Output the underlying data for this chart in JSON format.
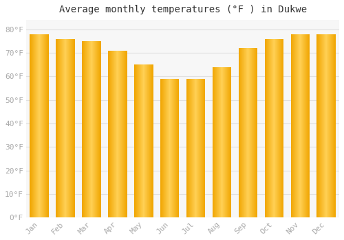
{
  "title": "Average monthly temperatures (°F ) in Dukwe",
  "months": [
    "Jan",
    "Feb",
    "Mar",
    "Apr",
    "May",
    "Jun",
    "Jul",
    "Aug",
    "Sep",
    "Oct",
    "Nov",
    "Dec"
  ],
  "values": [
    78,
    76,
    75,
    71,
    65,
    59,
    59,
    64,
    72,
    76,
    78,
    78
  ],
  "bar_edge_color": "#F0A500",
  "bar_center_color": "#FFD055",
  "background_color": "#ffffff",
  "plot_bg_color": "#f7f7f7",
  "grid_color": "#e0e0e0",
  "yticks": [
    0,
    10,
    20,
    30,
    40,
    50,
    60,
    70,
    80
  ],
  "ylim": [
    0,
    84
  ],
  "title_fontsize": 10,
  "tick_fontsize": 8,
  "tick_color": "#aaaaaa"
}
